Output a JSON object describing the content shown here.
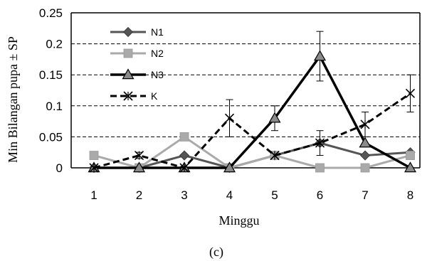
{
  "chart_data": {
    "type": "line",
    "title": "",
    "xlabel": "Minggu",
    "ylabel": "Min Bilangan pupa ± SP",
    "caption": "(c)",
    "x": [
      1,
      2,
      3,
      4,
      5,
      6,
      7,
      8
    ],
    "ylim": [
      0,
      0.25
    ],
    "yticks": [
      "0",
      "0.05",
      "0.1",
      "0.15",
      "0.2",
      "0.25"
    ],
    "grid": "horizontal dashed",
    "legend_position": "top-left",
    "series": [
      {
        "name": "N1",
        "color": "#555555",
        "marker": "diamond",
        "dash": "solid",
        "values": [
          0,
          0,
          0.02,
          0,
          0.02,
          0.04,
          0.02,
          0.025
        ],
        "err": [
          0,
          0,
          0,
          0,
          0,
          0.02,
          0,
          0
        ]
      },
      {
        "name": "N2",
        "color": "#aaaaaa",
        "marker": "square",
        "dash": "solid",
        "values": [
          0.02,
          0,
          0.05,
          0,
          0.02,
          0,
          0,
          0.02
        ],
        "err": [
          0,
          0,
          0,
          0,
          0,
          0,
          0,
          0
        ]
      },
      {
        "name": "N3",
        "color": "#000000",
        "marker": "triangle",
        "dash": "solid",
        "values": [
          0,
          0,
          0,
          0,
          0.08,
          0.18,
          0.04,
          0
        ],
        "err": [
          0,
          0,
          0,
          0,
          0.02,
          0.04,
          0,
          0
        ]
      },
      {
        "name": "K",
        "color": "#000000",
        "marker": "star",
        "dash": "dashed",
        "values": [
          0,
          0.02,
          0,
          0.08,
          0.02,
          0.04,
          0.07,
          0.12
        ],
        "err": [
          0,
          0.005,
          0,
          0.03,
          0,
          0,
          0.02,
          0.03
        ]
      }
    ]
  }
}
